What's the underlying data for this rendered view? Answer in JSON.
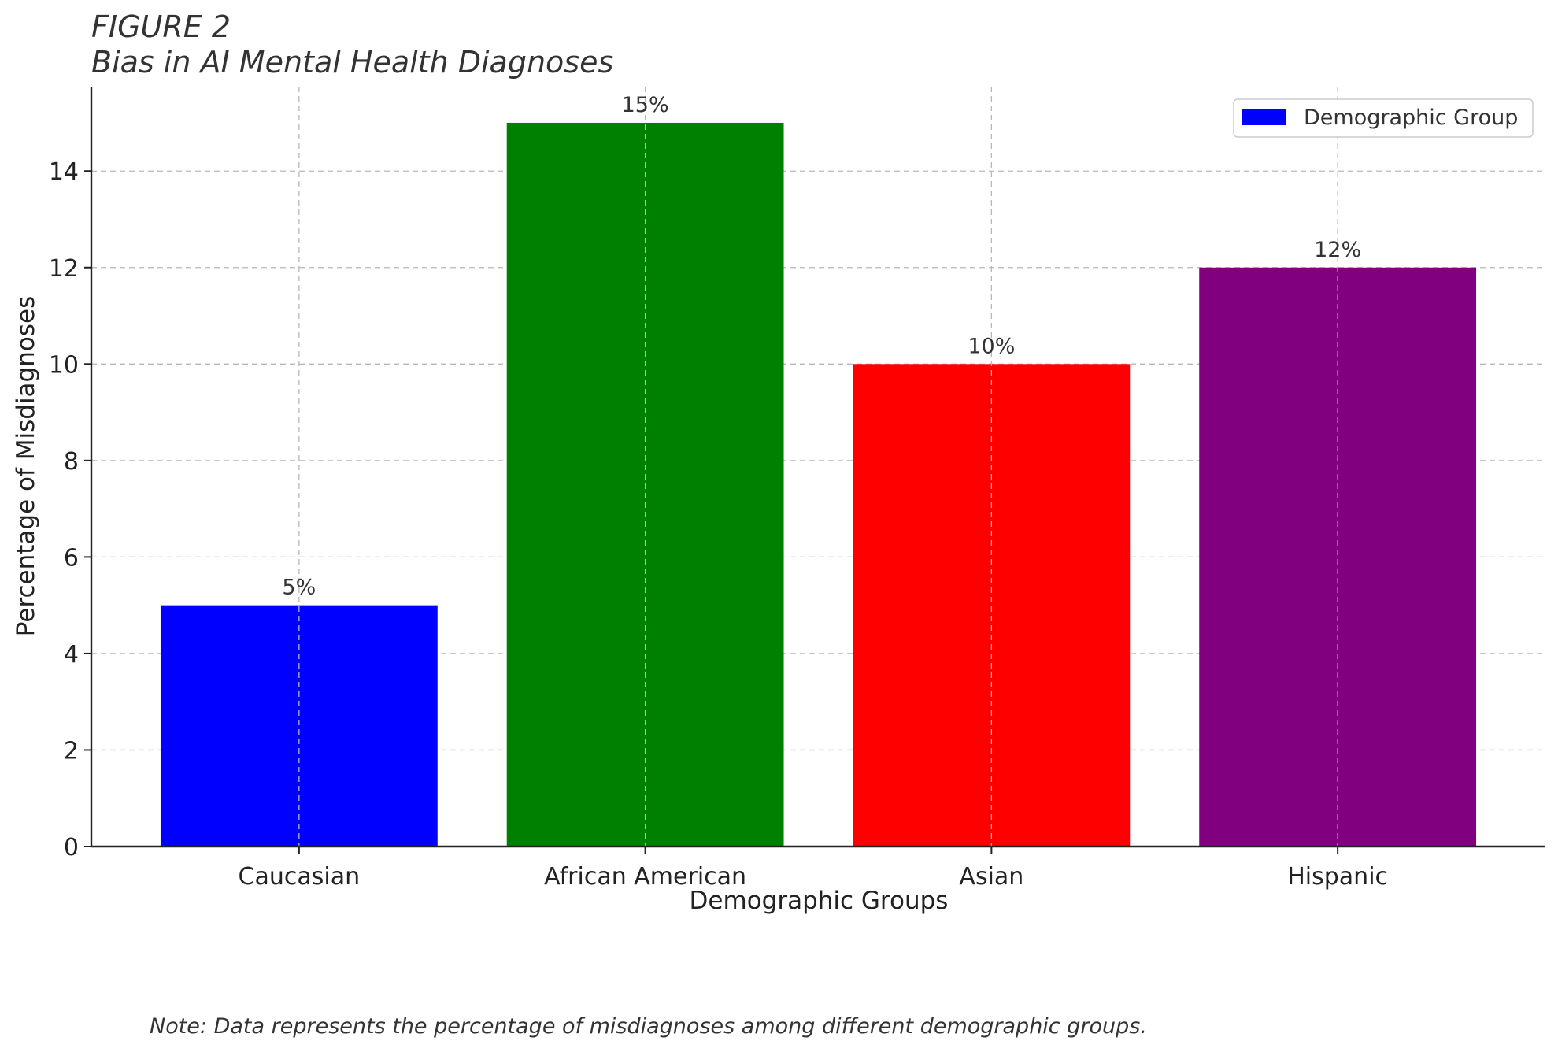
{
  "figure_label": "FIGURE 2",
  "chart_data": {
    "type": "bar",
    "title": "Bias in AI Mental Health Diagnoses",
    "categories": [
      "Caucasian",
      "African American",
      "Asian",
      "Hispanic"
    ],
    "values": [
      5,
      15,
      10,
      12
    ],
    "value_labels": [
      "5%",
      "15%",
      "10%",
      "12%"
    ],
    "colors": [
      "#0000ff",
      "#008000",
      "#ff0000",
      "#800080"
    ],
    "xlabel": "Demographic Groups",
    "ylabel": "Percentage of Misdiagnoses",
    "ylim": [
      0,
      15.75
    ],
    "yticks": [
      0,
      2,
      4,
      6,
      8,
      10,
      12,
      14
    ],
    "grid": true,
    "legend": {
      "label": "Demographic Group",
      "color": "#0000ff",
      "position": "top-right"
    }
  },
  "note": "Note: Data represents the percentage of misdiagnoses among different demographic groups."
}
